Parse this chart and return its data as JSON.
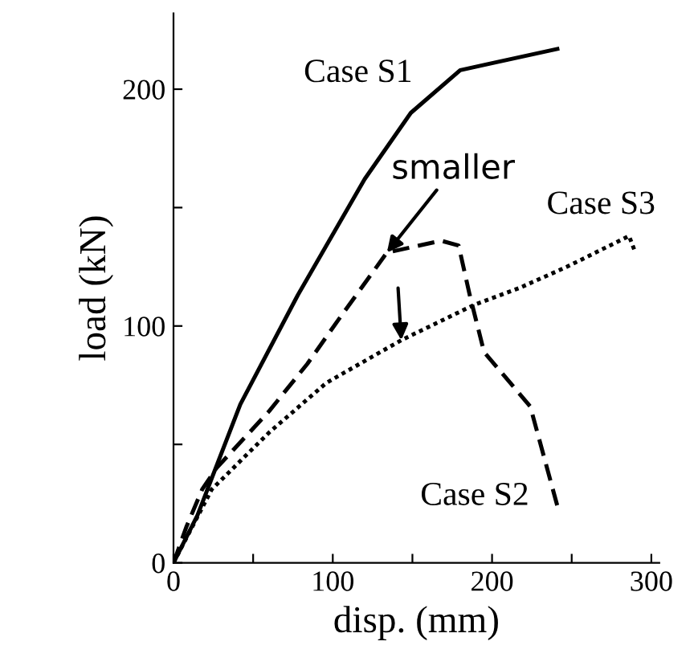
{
  "chart_data": {
    "type": "line",
    "xlabel": "disp. (mm)",
    "ylabel": "load (kN)",
    "xlim": [
      0,
      305
    ],
    "ylim": [
      0,
      232
    ],
    "xticks": [
      0,
      {
        "value": 50,
        "label": null
      },
      100,
      {
        "value": 150,
        "label": null
      },
      200,
      {
        "value": 250,
        "label": null
      },
      300
    ],
    "yticks": [
      0,
      {
        "value": 50,
        "label": null
      },
      100,
      {
        "value": 150,
        "label": null
      },
      200
    ],
    "grid": false,
    "marker": "none",
    "series": [
      {
        "color": "#000000",
        "line_style": "solid",
        "x": [
          0,
          15,
          42,
          78,
          120,
          149,
          180,
          200,
          241
        ],
        "values": [
          0,
          20,
          67,
          113,
          162,
          190,
          208,
          211,
          217
        ]
      },
      {
        "color": "#000000",
        "line_style": "dashed",
        "x": [
          0,
          8,
          18,
          27,
          60,
          84,
          105,
          134,
          168,
          179,
          186,
          195,
          224,
          241
        ],
        "values": [
          0,
          15,
          31,
          40,
          64,
          84,
          104,
          131,
          136,
          134,
          113,
          89,
          66,
          24
        ]
      },
      {
        "color": "#000000",
        "line_style": "dotted",
        "x": [
          0,
          24,
          60,
          96,
          143,
          189,
          217,
          247,
          286,
          290
        ],
        "values": [
          0,
          31,
          55,
          76,
          94,
          109,
          116,
          125,
          138,
          131
        ]
      }
    ],
    "annotations": [
      "Case S1",
      {
        "text": "smaller",
        "x": 134,
        "y": 131
      },
      "Case S3",
      "Case S2"
    ]
  }
}
